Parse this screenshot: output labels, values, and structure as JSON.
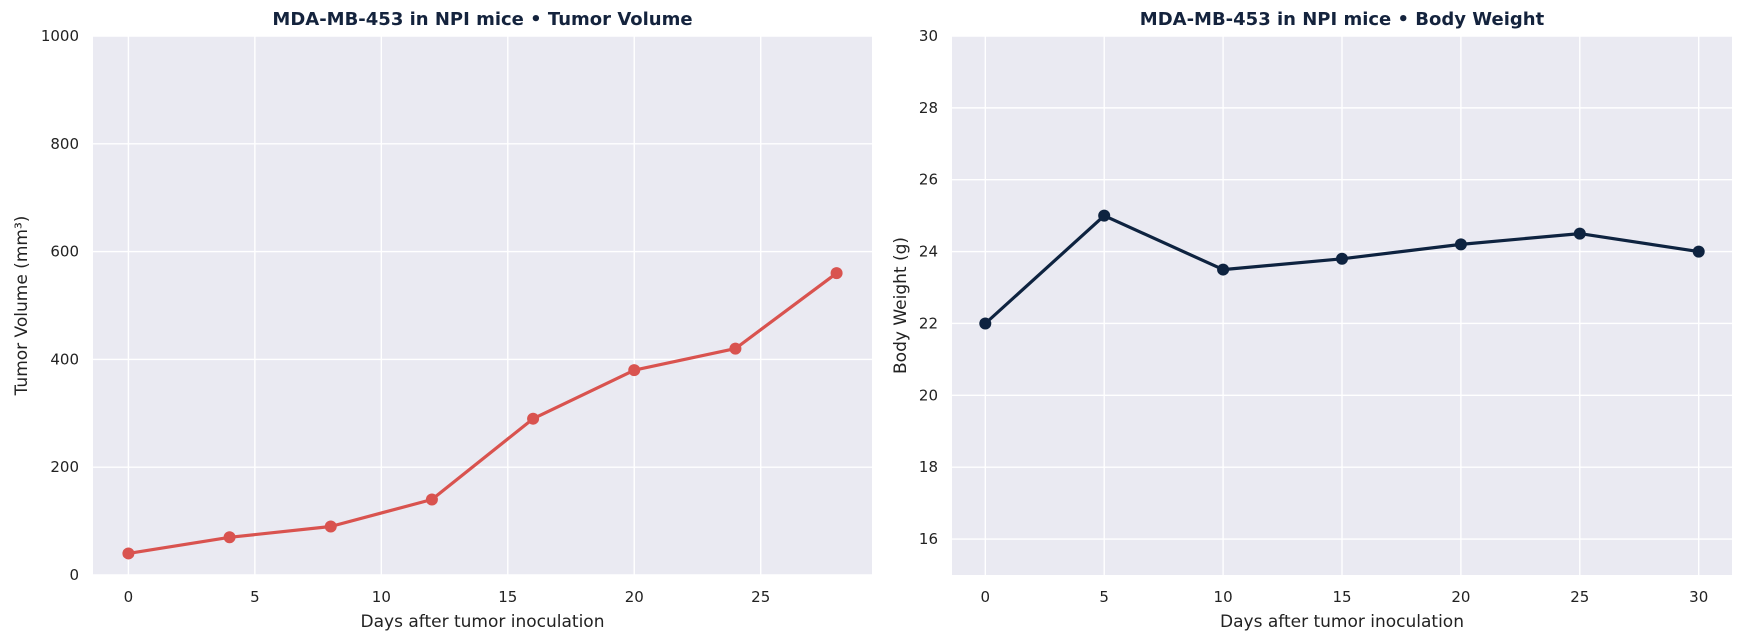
{
  "colors": {
    "background": "#ffffff",
    "plot_area": "#eaeaf2",
    "grid": "#ffffff",
    "title": "#14233d",
    "tumor_line": "#d9534f",
    "weight_line": "#0e2340",
    "text": "#222222"
  },
  "chart_data": [
    {
      "type": "line",
      "title": "MDA-MB-453 in NPI mice  •  Tumor Volume",
      "xlabel": "Days after tumor inoculation",
      "ylabel": "Tumor Volume (mm³)",
      "xlim": [
        -1.4,
        29.4
      ],
      "ylim": [
        0,
        1000
      ],
      "xticks": [
        0,
        5,
        10,
        15,
        20,
        25
      ],
      "yticks": [
        0,
        200,
        400,
        600,
        800,
        1000
      ],
      "grid": true,
      "series": [
        {
          "x": [
            0,
            4,
            8,
            12,
            16,
            20,
            24,
            28
          ],
          "y": [
            40,
            70,
            90,
            140,
            290,
            380,
            420,
            560
          ]
        }
      ]
    },
    {
      "type": "line",
      "title": "MDA-MB-453 in NPI mice  •  Body Weight",
      "xlabel": "Days after tumor inoculation",
      "ylabel": "Body Weight (g)",
      "xlim": [
        -1.4,
        31.4
      ],
      "ylim": [
        15,
        30
      ],
      "xticks": [
        0,
        5,
        10,
        15,
        20,
        25,
        30
      ],
      "yticks": [
        16,
        18,
        20,
        22,
        24,
        26,
        28,
        30
      ],
      "grid": true,
      "series": [
        {
          "x": [
            0,
            5,
            10,
            15,
            20,
            25,
            30
          ],
          "y": [
            22,
            25,
            23.5,
            23.8,
            24.2,
            24.5,
            24
          ]
        }
      ]
    }
  ]
}
